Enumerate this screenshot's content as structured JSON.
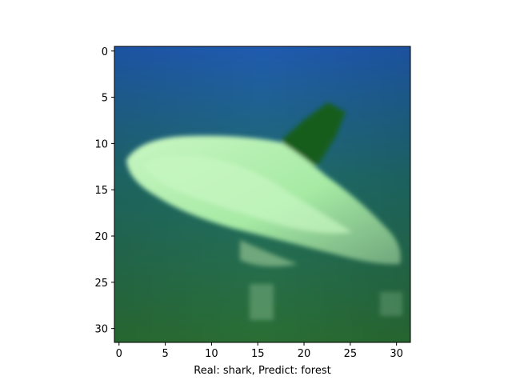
{
  "figure": {
    "caption": "Real: shark, Predict: forest",
    "image_subject": "low-resolution 32x32 photo of a pale green shark swimming in blue-green water",
    "colors": {
      "water_top": "#1f5ab0",
      "water_mid": "#1f6b68",
      "water_bottom": "#2a6e33",
      "shark_body": "#a6eaa4",
      "shark_highlight": "#c8f6c2",
      "shark_shadow": "#6fa77c",
      "fin_dark": "#145d1c"
    },
    "x_axis": {
      "ticks": [
        "0",
        "5",
        "10",
        "15",
        "20",
        "25",
        "30"
      ],
      "range": [
        -0.5,
        31.5
      ]
    },
    "y_axis": {
      "ticks": [
        "0",
        "5",
        "10",
        "15",
        "20",
        "25",
        "30"
      ],
      "range": [
        -0.5,
        31.5
      ]
    }
  }
}
